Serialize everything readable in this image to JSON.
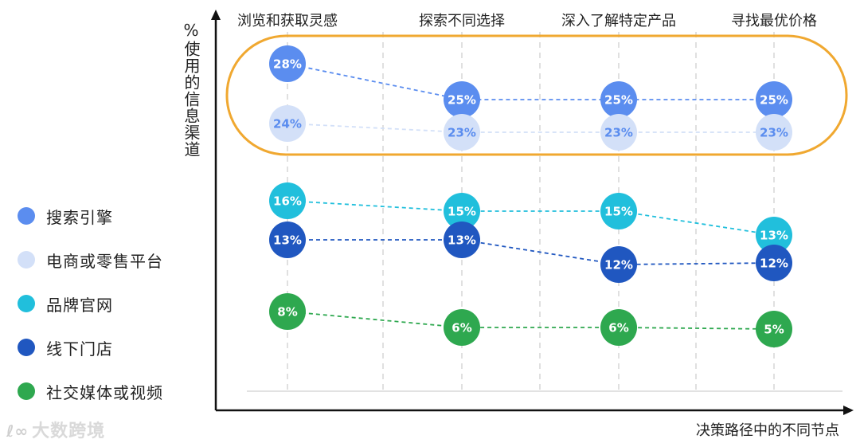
{
  "chart_data": {
    "type": "line",
    "categories": [
      "浏览和获取灵感",
      "探索不同选择",
      "深入了解特定产品",
      "寻找最优价格"
    ],
    "series": [
      {
        "name": "搜索引擎",
        "color": "#5b8def",
        "text_color": "#ffffff",
        "values": [
          28,
          25,
          25,
          25
        ]
      },
      {
        "name": "电商或零售平台",
        "color": "#d3e0f8",
        "text_color": "#5b8def",
        "values": [
          24,
          23,
          23,
          23
        ]
      },
      {
        "name": "品牌官网",
        "color": "#21bfdc",
        "text_color": "#ffffff",
        "values": [
          16,
          15,
          15,
          13
        ]
      },
      {
        "name": "线下门店",
        "color": "#2057c0",
        "text_color": "#ffffff",
        "values": [
          13,
          13,
          12,
          12
        ]
      },
      {
        "name": "社交媒体或视频",
        "color": "#2ea84f",
        "text_color": "#ffffff",
        "values": [
          8,
          6,
          6,
          5
        ]
      }
    ],
    "value_suffix": "%",
    "ylabel": "%使用的信息渠道",
    "xlabel": "决策路径中的不同节点",
    "legend_position": "left",
    "grid": "vertical dashed",
    "highlight": {
      "series": [
        "搜索引擎",
        "电商或零售平台"
      ],
      "color": "#f0a830"
    }
  },
  "watermark": {
    "icon": "ℓ∞",
    "text": "大数跨境"
  }
}
